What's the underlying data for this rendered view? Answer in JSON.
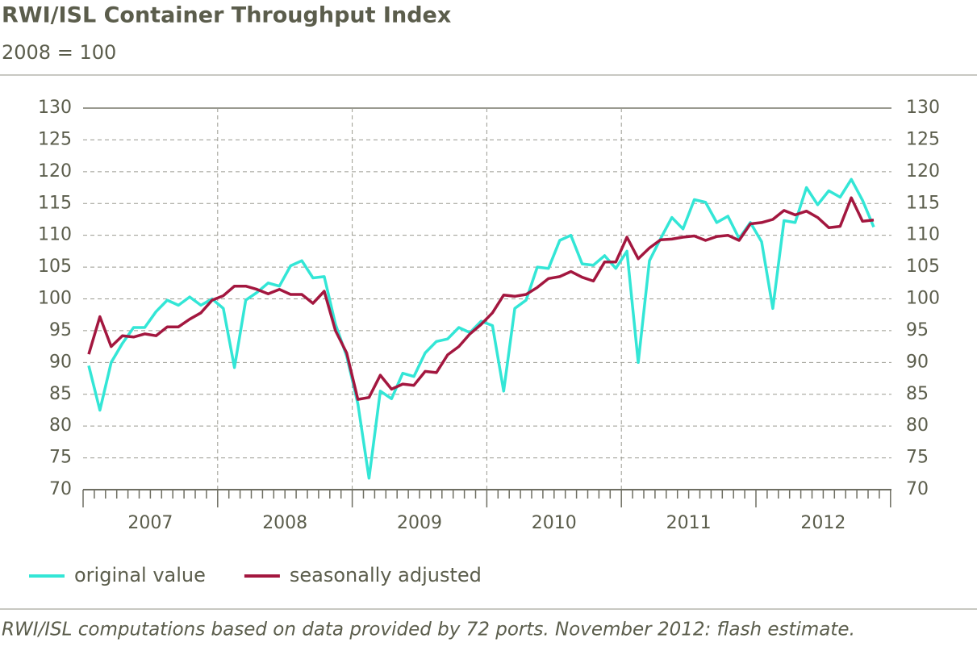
{
  "chart_data": {
    "type": "line",
    "title": "RWI/ISL Container Throughput Index",
    "subtitle": "2008 = 100",
    "note": "RWI/ISL computations based on data provided by 72 ports. November 2012: flash estimate.",
    "categories": [
      null,
      null,
      null,
      null,
      null,
      "2007",
      null,
      null,
      null,
      null,
      null,
      null,
      null,
      null,
      null,
      null,
      null,
      "2008",
      null,
      null,
      null,
      null,
      null,
      null,
      null,
      null,
      null,
      null,
      null,
      "2009",
      null,
      null,
      null,
      null,
      null,
      null,
      null,
      null,
      null,
      null,
      null,
      "2010",
      null,
      null,
      null,
      null,
      null,
      null,
      null,
      null,
      null,
      null,
      null,
      "2011",
      null,
      null,
      null,
      null,
      null,
      null,
      null,
      null,
      null,
      null,
      null,
      "2012",
      null,
      null,
      null,
      null,
      null
    ],
    "series": [
      {
        "name": "original value",
        "color": "#33e6d6",
        "values": [
          89.5,
          82.5,
          90,
          93,
          95.5,
          95.5,
          98,
          99.8,
          99,
          100.3,
          99,
          100,
          98.5,
          89.2,
          99.8,
          101,
          102.5,
          102,
          105.2,
          106,
          103.3,
          103.5,
          96,
          91,
          83.5,
          71.8,
          85.5,
          84.3,
          88.3,
          87.8,
          91.5,
          93.3,
          93.7,
          95.5,
          94.7,
          96.5,
          95.8,
          85.5,
          98.5,
          99.8,
          105,
          104.8,
          109.2,
          110,
          105.5,
          105.3,
          106.8,
          104.8,
          107.5,
          90,
          106,
          109.5,
          112.8,
          111,
          115.6,
          115.2,
          112,
          113,
          109.5,
          112,
          109,
          98.5,
          112.3,
          112,
          117.5,
          114.8,
          117,
          116,
          118.8,
          115.5,
          111.3
        ]
      },
      {
        "name": "seasonally adjusted",
        "color": "#a3173f",
        "values": [
          91.3,
          97.2,
          92.5,
          94.2,
          94,
          94.5,
          94.2,
          95.6,
          95.6,
          96.8,
          97.8,
          99.8,
          100.5,
          102,
          102,
          101.5,
          100.8,
          101.5,
          100.7,
          100.7,
          99.3,
          101.2,
          95,
          91.5,
          84.2,
          84.5,
          88,
          85.8,
          86.6,
          86.4,
          88.6,
          88.4,
          91.2,
          92.5,
          94.5,
          96,
          97.8,
          100.6,
          100.4,
          100.7,
          101.8,
          103.2,
          103.5,
          104.3,
          103.4,
          102.8,
          105.8,
          105.8,
          109.7,
          106.3,
          108,
          109.3,
          109.4,
          109.7,
          109.9,
          109.2,
          109.8,
          110,
          109.2,
          111.8,
          112,
          112.5,
          113.9,
          113.2,
          113.8,
          112.8,
          111.2,
          111.4,
          115.9,
          112.2,
          112.4
        ]
      }
    ],
    "ylim": [
      70,
      130
    ],
    "yticks": [
      70,
      75,
      80,
      85,
      90,
      95,
      100,
      105,
      110,
      115,
      120,
      125,
      130
    ],
    "grid": true,
    "legend": "bottom-left"
  }
}
